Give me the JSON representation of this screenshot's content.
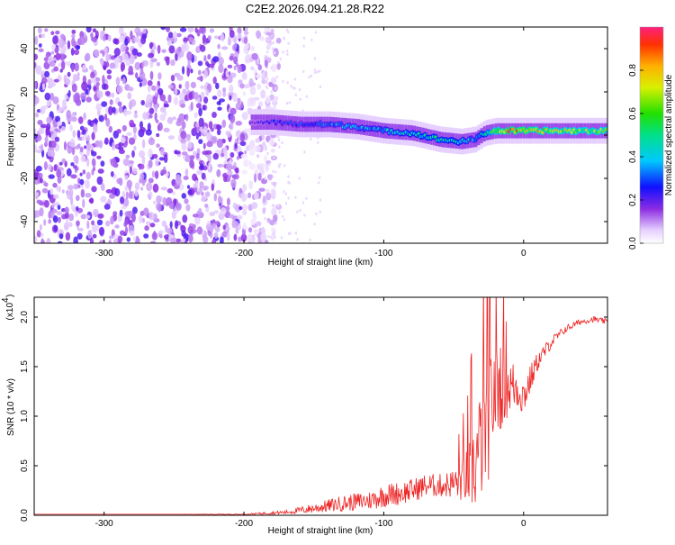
{
  "title": "C2E2.2026.094.21.28.R22",
  "chart_data": [
    {
      "type": "heatmap",
      "xlabel": "Height of straight line (km)",
      "ylabel": "Frequency (Hz)",
      "xlim": [
        -350,
        60
      ],
      "ylim": [
        -50,
        50
      ],
      "xticks": [
        -300,
        -200,
        -100,
        0
      ],
      "yticks": [
        -40,
        -20,
        0,
        20,
        40
      ],
      "colorbar": {
        "label": "Normalized spectral amplitude",
        "range": [
          0.0,
          1.0
        ],
        "ticks": [
          "0.0",
          "0.2",
          "0.4",
          "0.6",
          "0.8"
        ]
      },
      "trace": {
        "x": [
          -195,
          -180,
          -160,
          -140,
          -120,
          -100,
          -80,
          -60,
          -45,
          -35,
          -28,
          -20,
          -10,
          0,
          20,
          40,
          60
        ],
        "y": [
          6,
          6,
          5,
          5,
          4,
          2,
          1,
          -2,
          -3,
          -2,
          1,
          2,
          2,
          2,
          2,
          2,
          2
        ],
        "amplitude": [
          0.2,
          0.25,
          0.3,
          0.35,
          0.38,
          0.4,
          0.45,
          0.5,
          0.45,
          0.35,
          0.5,
          0.7,
          0.9,
          0.85,
          0.75,
          0.7,
          0.7
        ]
      },
      "noise_region_x": [
        -350,
        -185
      ]
    },
    {
      "type": "line",
      "xlabel": "Height of straight line (km)",
      "ylabel": "SNR (10 * v/v)",
      "y_multiplier": "(x10",
      "y_multiplier_exp": "4",
      "y_multiplier_close": ")",
      "xlim": [
        -350,
        60
      ],
      "ylim": [
        0,
        2.2
      ],
      "xticks": [
        -300,
        -200,
        -100,
        0
      ],
      "yticks": [
        "0.0",
        "0.5",
        "1.0",
        "1.5",
        "2.0"
      ],
      "series": [
        {
          "color": "#ee2222",
          "x": [
            -350,
            -250,
            -200,
            -170,
            -150,
            -130,
            -110,
            -100,
            -90,
            -80,
            -70,
            -60,
            -50,
            -40,
            -35,
            -30,
            -25,
            -20,
            -15,
            -10,
            -5,
            0,
            10,
            20,
            30,
            40,
            50,
            60
          ],
          "values": [
            0.01,
            0.01,
            0.01,
            0.03,
            0.07,
            0.12,
            0.15,
            0.2,
            0.22,
            0.25,
            0.3,
            0.3,
            0.32,
            0.4,
            0.5,
            0.75,
            1.05,
            1.3,
            1.35,
            1.3,
            1.3,
            1.2,
            1.55,
            1.75,
            1.88,
            1.95,
            1.98,
            1.95
          ],
          "noise": [
            0,
            0,
            0.005,
            0.02,
            0.05,
            0.08,
            0.1,
            0.12,
            0.12,
            0.12,
            0.12,
            0.12,
            0.15,
            0.3,
            0.5,
            0.6,
            0.7,
            0.55,
            0.45,
            0.3,
            0.25,
            0.2,
            0.1,
            0.06,
            0.04,
            0.03,
            0.03,
            0.03
          ]
        }
      ]
    }
  ]
}
